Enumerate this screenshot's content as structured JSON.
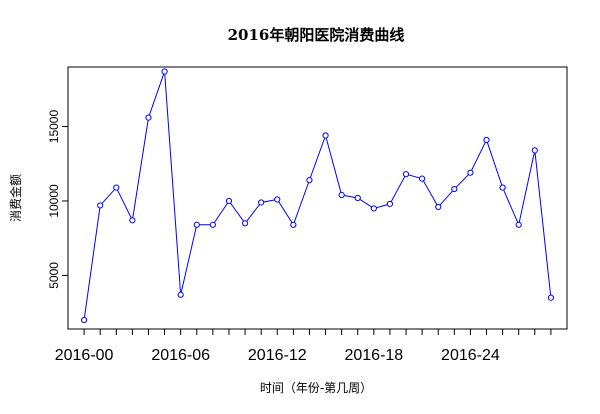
{
  "chart_data": {
    "type": "line",
    "title": "2016年朝阳医院消费曲线",
    "xlabel": "时间（年份-第几周）",
    "ylabel": "消费金额",
    "x_tick_labels": [
      "2016-00",
      "2016-06",
      "2016-12",
      "2016-18",
      "2016-24"
    ],
    "x_tick_weeks": [
      0,
      6,
      12,
      18,
      24
    ],
    "y_ticks": [
      5000,
      10000,
      15000
    ],
    "xlim": [
      -1,
      30
    ],
    "ylim": [
      1400,
      19000
    ],
    "series": [
      {
        "color": "#0000ff",
        "marker": "open-circle",
        "weeks": [
          0,
          1,
          2,
          3,
          4,
          5,
          6,
          7,
          8,
          9,
          10,
          11,
          12,
          13,
          14,
          15,
          16,
          17,
          18,
          19,
          20,
          21,
          22,
          23,
          24,
          25,
          26,
          27,
          28,
          29
        ],
        "values": [
          2000,
          9700,
          10900,
          8700,
          15600,
          18700,
          3700,
          8400,
          8400,
          10000,
          8500,
          9900,
          10100,
          8400,
          11400,
          14400,
          10400,
          10200,
          9500,
          9800,
          11800,
          11500,
          9600,
          10800,
          11900,
          14100,
          10900,
          8400,
          13400,
          3500
        ]
      }
    ]
  }
}
